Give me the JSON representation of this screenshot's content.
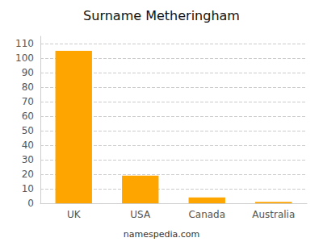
{
  "chart_data": {
    "type": "bar",
    "title": "Surname Metheringham",
    "categories": [
      "UK",
      "USA",
      "Canada",
      "Australia"
    ],
    "values": [
      105,
      19,
      4,
      1
    ],
    "color": "#FFA500",
    "ylim": [
      0,
      115
    ],
    "yticks": [
      0,
      10,
      20,
      30,
      40,
      50,
      60,
      70,
      80,
      90,
      100,
      110
    ],
    "grid": true,
    "annotations": [
      "namespedia.com"
    ]
  }
}
